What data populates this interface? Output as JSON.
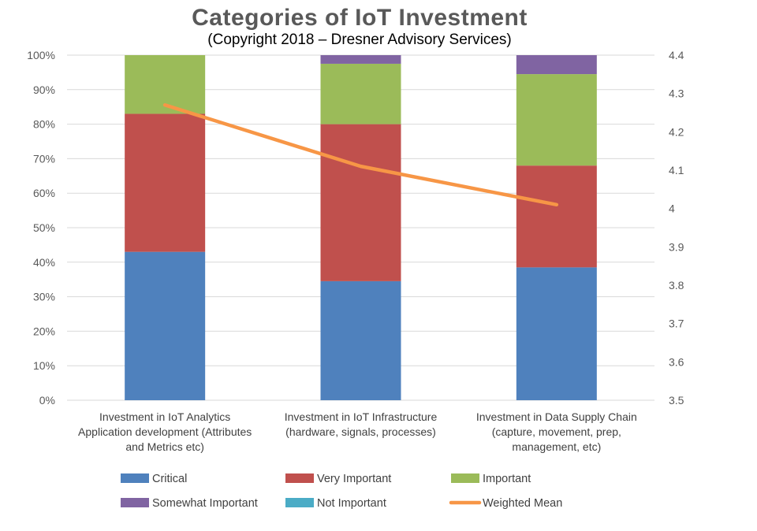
{
  "header": {
    "title": "Categories of IoT Investment",
    "subtitle": "(Copyright 2018 – Dresner Advisory Services)"
  },
  "chart_data": {
    "type": "bar",
    "stacked": true,
    "percent_stacked": true,
    "title": "Categories of IoT Investment",
    "subtitle": "(Copyright 2018 – Dresner Advisory Services)",
    "categories": [
      [
        "Investment in IoT Analytics",
        "Application development (Attributes",
        "and Metrics etc)"
      ],
      [
        "Investment in IoT Infrastructure",
        "(hardware, signals, processes)"
      ],
      [
        "Investment in Data Supply Chain",
        "(capture, movement, prep,",
        "management, etc)"
      ]
    ],
    "y_left": {
      "ylim": [
        0,
        100
      ],
      "ticks": [
        "0%",
        "10%",
        "20%",
        "30%",
        "40%",
        "50%",
        "60%",
        "70%",
        "80%",
        "90%",
        "100%"
      ]
    },
    "y_right": {
      "ylim": [
        3.5,
        4.4
      ],
      "ticks": [
        "3.5",
        "3.6",
        "3.7",
        "3.8",
        "3.9",
        "4",
        "4.1",
        "4.2",
        "4.3",
        "4.4"
      ]
    },
    "series": [
      {
        "name": "Critical",
        "type": "bar",
        "color": "#4f81bd",
        "values": [
          43,
          34.5,
          38.5
        ]
      },
      {
        "name": "Very Important",
        "type": "bar",
        "color": "#c0504d",
        "values": [
          40,
          45.5,
          29.5
        ]
      },
      {
        "name": "Important",
        "type": "bar",
        "color": "#9bbb59",
        "values": [
          17,
          17.5,
          26.5
        ]
      },
      {
        "name": "Somewhat Important",
        "type": "bar",
        "color": "#8064a2",
        "values": [
          0,
          2.5,
          5.5
        ]
      },
      {
        "name": "Not Important",
        "type": "bar",
        "color": "#4bacc6",
        "values": [
          0,
          0,
          0
        ]
      },
      {
        "name": "Weighted Mean",
        "type": "line",
        "axis": "right",
        "color": "#f79646",
        "values": [
          4.27,
          4.11,
          4.01
        ]
      }
    ],
    "legend": {
      "position": "bottom",
      "rows": [
        [
          "Critical",
          "Very Important",
          "Important"
        ],
        [
          "Somewhat Important",
          "Not Important",
          "Weighted Mean"
        ]
      ]
    },
    "grid": true
  }
}
